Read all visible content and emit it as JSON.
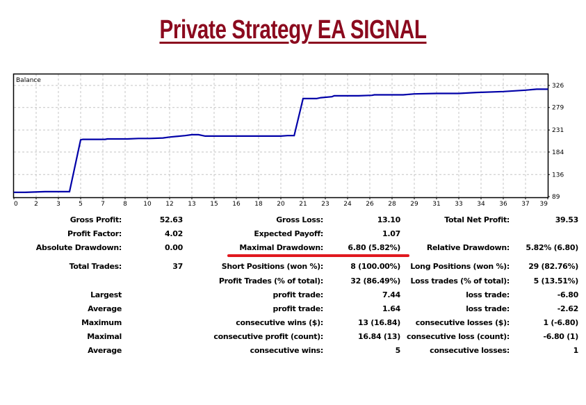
{
  "header": {
    "title": "Private Strategy EA SIGNAL"
  },
  "colors": {
    "title": "#8b0a1e",
    "line": "#0000a8",
    "grid": "#c0c0c0",
    "highlight": "#e0191f"
  },
  "chart_data": {
    "type": "line",
    "title": "Balance",
    "xlabel": "",
    "ylabel": "",
    "grid": true,
    "x_tick_labels": [
      "0",
      "2",
      "3",
      "5",
      "7",
      "8",
      "10",
      "12",
      "13",
      "15",
      "16",
      "18",
      "20",
      "21",
      "23",
      "24",
      "26",
      "28",
      "29",
      "31",
      "33",
      "34",
      "36",
      "37",
      "39"
    ],
    "y_ticks": [
      89,
      136,
      184,
      231,
      279,
      326
    ],
    "ylim": [
      89,
      326
    ],
    "xlim": [
      0,
      24
    ],
    "series": [
      {
        "name": "Balance",
        "x": [
          0,
          0.5,
          1.4,
          2.4,
          2.5,
          3.0,
          3.1,
          4.1,
          4.2,
          5.0,
          5.1,
          5.6,
          6.1,
          6.7,
          7.0,
          7.7,
          8.0,
          8.3,
          8.6,
          8.7,
          9.0,
          12.0,
          12.3,
          12.6,
          13.0,
          13.6,
          13.8,
          14.3,
          14.4,
          15.0,
          15.5,
          16.1,
          16.2,
          17.0,
          17.5,
          18.0,
          19.0,
          20.0,
          20.8,
          22.0,
          23.0,
          23.5,
          24.0
        ],
        "y": [
          98,
          98,
          99.5,
          99.5,
          99.5,
          210,
          211,
          211,
          212,
          212,
          212,
          213,
          213,
          214,
          216,
          219,
          221,
          221,
          218,
          218,
          218,
          218,
          219,
          219,
          298,
          298,
          300,
          302,
          304,
          304,
          304,
          305,
          306,
          306,
          306,
          308,
          309,
          309,
          311,
          313,
          316,
          318,
          318
        ]
      }
    ]
  },
  "stats": {
    "col1": [
      {
        "label": "Gross Profit:",
        "value": "52.63"
      },
      {
        "label": "Profit Factor:",
        "value": "4.02"
      },
      {
        "label": "Absolute Drawdown:",
        "value": "0.00"
      },
      {
        "label": "Total Trades:",
        "value": "37"
      },
      {
        "label": "Largest",
        "value": ""
      },
      {
        "label": "Average",
        "value": ""
      },
      {
        "label": "Maximum",
        "value": ""
      },
      {
        "label": "Maximal",
        "value": ""
      },
      {
        "label": "Average",
        "value": ""
      }
    ],
    "col2": [
      {
        "label": "Gross Loss:",
        "value": "13.10"
      },
      {
        "label": "Expected Payoff:",
        "value": "1.07"
      },
      {
        "label": "Maximal Drawdown:",
        "value": "6.80 (5.82%)"
      },
      {
        "label": "Short Positions (won %):",
        "value": "8 (100.00%)"
      },
      {
        "label": "Profit Trades (% of total):",
        "value": "32 (86.49%)"
      },
      {
        "label": "profit trade:",
        "value": "7.44"
      },
      {
        "label": "profit trade:",
        "value": "1.64"
      },
      {
        "label": "consecutive wins ($):",
        "value": "13 (16.84)"
      },
      {
        "label": "consecutive profit (count):",
        "value": "16.84 (13)"
      },
      {
        "label": "consecutive wins:",
        "value": "5"
      }
    ],
    "col3": [
      {
        "label": "Total Net Profit:",
        "value": "39.53"
      },
      {
        "label": "Relative Drawdown:",
        "value": "5.82% (6.80)"
      },
      {
        "label": "Long Positions (won %):",
        "value": "29 (82.76%)"
      },
      {
        "label": "Loss trades (% of total):",
        "value": "5 (13.51%)"
      },
      {
        "label": "loss trade:",
        "value": "-6.80"
      },
      {
        "label": "loss trade:",
        "value": "-2.62"
      },
      {
        "label": "consecutive losses ($):",
        "value": "1 (-6.80)"
      },
      {
        "label": "consecutive loss (count):",
        "value": "-6.80 (1)"
      },
      {
        "label": "consecutive losses:",
        "value": "1"
      }
    ]
  }
}
